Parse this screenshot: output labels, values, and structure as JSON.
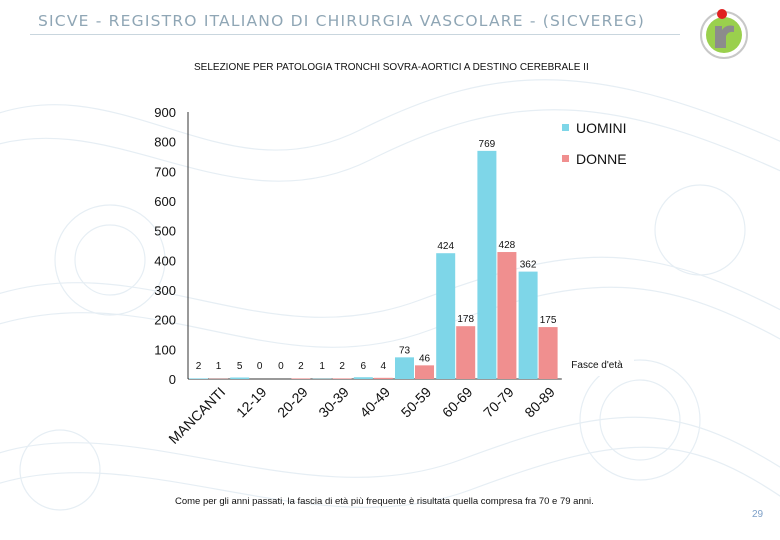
{
  "header": {
    "title": "SICVE - REGISTRO ITALIANO DI CHIRURGIA VASCOLARE -  (SICVEREG)",
    "logo": "sicve-logo-icon"
  },
  "subtitle": "SELEZIONE PER PATOLOGIA TRONCHI SOVRA-AORTICI A DESTINO CEREBRALE II",
  "chart_data": {
    "type": "bar",
    "categories": [
      "MANCANTI",
      "12-19",
      "20-29",
      "30-39",
      "40-49",
      "50-59",
      "60-69",
      "70-79",
      "80-89"
    ],
    "series": [
      {
        "name": "UOMINI",
        "values": [
          2,
          5,
          0,
          1,
          6,
          73,
          424,
          769,
          362
        ],
        "color": "#7ed6e8"
      },
      {
        "name": "DONNE",
        "values": [
          1,
          0,
          2,
          2,
          4,
          46,
          178,
          428,
          175
        ],
        "color": "#f08f8f"
      }
    ],
    "ylim": [
      0,
      900
    ],
    "yticks": [
      0,
      100,
      200,
      300,
      400,
      500,
      600,
      700,
      800,
      900
    ],
    "legend_position": "top-right",
    "xlabel": "Fasce d'età",
    "ylabel": "",
    "grid": false
  },
  "footnote": "Come per gli anni passati, la fascia di età più frequente è risultata quella compresa fra 70 e 79 anni.",
  "page_number": "29"
}
